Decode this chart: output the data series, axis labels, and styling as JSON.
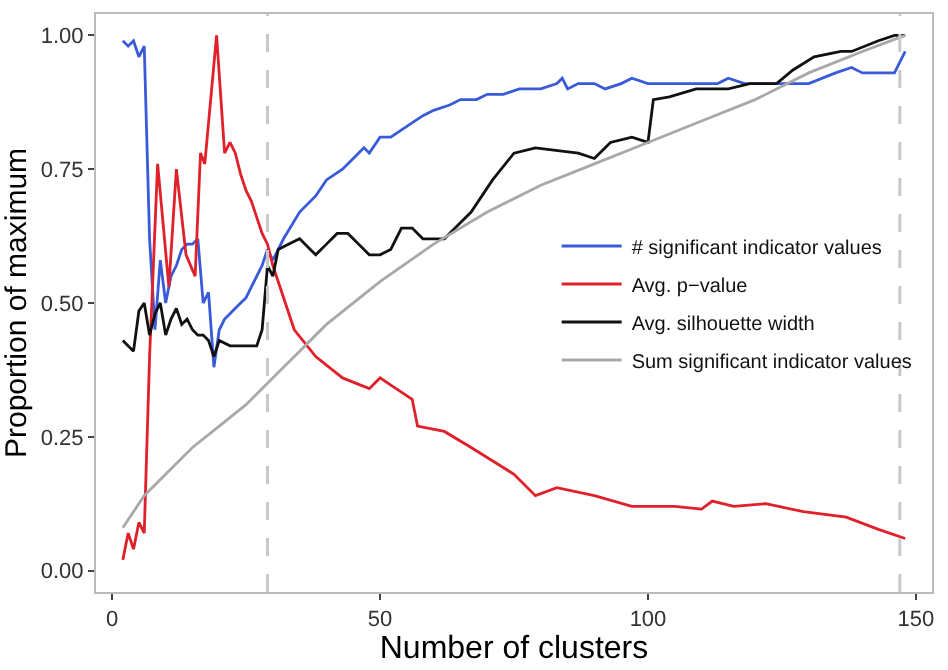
{
  "chart_data": {
    "type": "line",
    "xlabel": "Number of clusters",
    "ylabel": "Proportion of maximum",
    "xlim": [
      -3,
      153
    ],
    "ylim": [
      -0.04,
      1.04
    ],
    "xticks": [
      0,
      50,
      100,
      150
    ],
    "yticks": [
      {
        "value": 0,
        "label": "0.00"
      },
      {
        "value": 0.25,
        "label": "0.25"
      },
      {
        "value": 0.5,
        "label": "0.50"
      },
      {
        "value": 0.75,
        "label": "0.75"
      },
      {
        "value": 1,
        "label": "1.00"
      }
    ],
    "grid": false,
    "legend": "right",
    "line_style": "solid",
    "marker": "none",
    "ref_lines": [
      {
        "axis": "x",
        "value": 29,
        "color": "#c8c8c8",
        "line_style": "dashed"
      },
      {
        "axis": "x",
        "value": 147,
        "color": "#c8c8c8",
        "line_style": "dashed"
      }
    ],
    "series": [
      {
        "name": "# significant indicator values",
        "color": "#3a5bd9",
        "x": [
          2,
          3,
          4,
          5,
          6,
          7,
          8,
          9,
          10,
          11,
          12,
          13,
          14,
          15,
          16,
          17,
          18,
          19,
          20,
          21,
          22,
          23,
          24,
          25,
          26,
          27,
          28,
          29,
          30,
          32,
          35,
          38,
          40,
          43,
          45,
          47,
          48,
          50,
          52,
          55,
          58,
          60,
          63,
          65,
          68,
          70,
          73,
          76,
          80,
          83,
          84,
          85,
          87,
          90,
          92,
          95,
          97,
          100,
          105,
          110,
          113,
          115,
          118,
          125,
          130,
          135,
          138,
          140,
          146,
          148
        ],
        "values": [
          0.99,
          0.98,
          0.99,
          0.96,
          0.98,
          0.62,
          0.45,
          0.58,
          0.5,
          0.55,
          0.57,
          0.6,
          0.61,
          0.61,
          0.62,
          0.5,
          0.52,
          0.38,
          0.45,
          0.47,
          0.48,
          0.49,
          0.5,
          0.51,
          0.53,
          0.55,
          0.57,
          0.6,
          0.58,
          0.62,
          0.67,
          0.7,
          0.73,
          0.75,
          0.77,
          0.79,
          0.78,
          0.81,
          0.81,
          0.83,
          0.85,
          0.86,
          0.87,
          0.88,
          0.88,
          0.89,
          0.89,
          0.9,
          0.9,
          0.91,
          0.92,
          0.9,
          0.91,
          0.91,
          0.9,
          0.91,
          0.92,
          0.91,
          0.91,
          0.91,
          0.91,
          0.92,
          0.91,
          0.91,
          0.91,
          0.93,
          0.94,
          0.93,
          0.93,
          0.97
        ]
      },
      {
        "name": "Avg. p−value",
        "color": "#e0202a",
        "x": [
          2,
          3,
          4,
          5,
          6,
          7,
          8.5,
          10.6,
          12,
          13.8,
          15.5,
          16.5,
          17.3,
          19.5,
          21,
          22,
          23,
          24,
          25,
          26,
          27,
          28,
          29,
          30,
          33,
          34,
          38,
          43,
          48,
          50,
          53,
          56,
          57,
          62,
          67,
          75,
          79,
          83,
          90,
          97,
          105,
          110,
          112,
          116,
          122,
          129,
          137,
          143,
          148
        ],
        "values": [
          0.02,
          0.07,
          0.04,
          0.09,
          0.07,
          0.4,
          0.76,
          0.53,
          0.75,
          0.59,
          0.55,
          0.78,
          0.76,
          1.0,
          0.78,
          0.8,
          0.78,
          0.74,
          0.71,
          0.69,
          0.66,
          0.63,
          0.61,
          0.57,
          0.48,
          0.45,
          0.4,
          0.36,
          0.34,
          0.36,
          0.34,
          0.32,
          0.27,
          0.26,
          0.23,
          0.18,
          0.14,
          0.155,
          0.14,
          0.12,
          0.12,
          0.115,
          0.13,
          0.12,
          0.125,
          0.11,
          0.1,
          0.077,
          0.06
        ]
      },
      {
        "name": "Avg. silhouette width",
        "color": "#111111",
        "x": [
          2,
          4,
          5,
          6,
          7,
          8,
          9,
          10,
          11,
          12,
          13,
          14,
          15,
          16,
          17,
          18,
          19,
          20,
          22,
          25,
          27,
          28,
          29,
          30,
          31,
          33,
          35,
          37,
          38,
          40,
          42,
          44,
          46,
          48,
          50,
          52,
          54,
          56,
          58,
          60,
          62,
          64,
          67,
          71,
          75,
          79,
          87,
          90,
          93,
          97,
          100,
          101,
          104,
          109,
          115,
          119,
          124,
          127,
          131,
          136,
          138,
          143,
          146,
          148
        ],
        "values": [
          0.43,
          0.41,
          0.485,
          0.5,
          0.44,
          0.48,
          0.5,
          0.44,
          0.47,
          0.49,
          0.46,
          0.47,
          0.45,
          0.44,
          0.44,
          0.43,
          0.4,
          0.43,
          0.42,
          0.42,
          0.42,
          0.45,
          0.57,
          0.55,
          0.6,
          0.61,
          0.62,
          0.6,
          0.59,
          0.61,
          0.63,
          0.63,
          0.61,
          0.59,
          0.59,
          0.6,
          0.64,
          0.64,
          0.62,
          0.62,
          0.62,
          0.64,
          0.67,
          0.73,
          0.78,
          0.79,
          0.78,
          0.77,
          0.8,
          0.81,
          0.8,
          0.88,
          0.885,
          0.9,
          0.9,
          0.91,
          0.91,
          0.935,
          0.96,
          0.97,
          0.97,
          0.99,
          1.0,
          1.0
        ]
      },
      {
        "name": "Sum significant indicator values",
        "color": "#a8a8a8",
        "x": [
          2,
          6,
          10,
          15,
          20,
          25,
          29,
          35,
          40,
          50,
          60,
          70,
          80,
          90,
          100,
          110,
          120,
          130,
          140,
          148
        ],
        "values": [
          0.08,
          0.14,
          0.18,
          0.23,
          0.27,
          0.31,
          0.35,
          0.41,
          0.46,
          0.54,
          0.61,
          0.67,
          0.72,
          0.76,
          0.8,
          0.84,
          0.88,
          0.93,
          0.97,
          1.0
        ]
      }
    ]
  }
}
